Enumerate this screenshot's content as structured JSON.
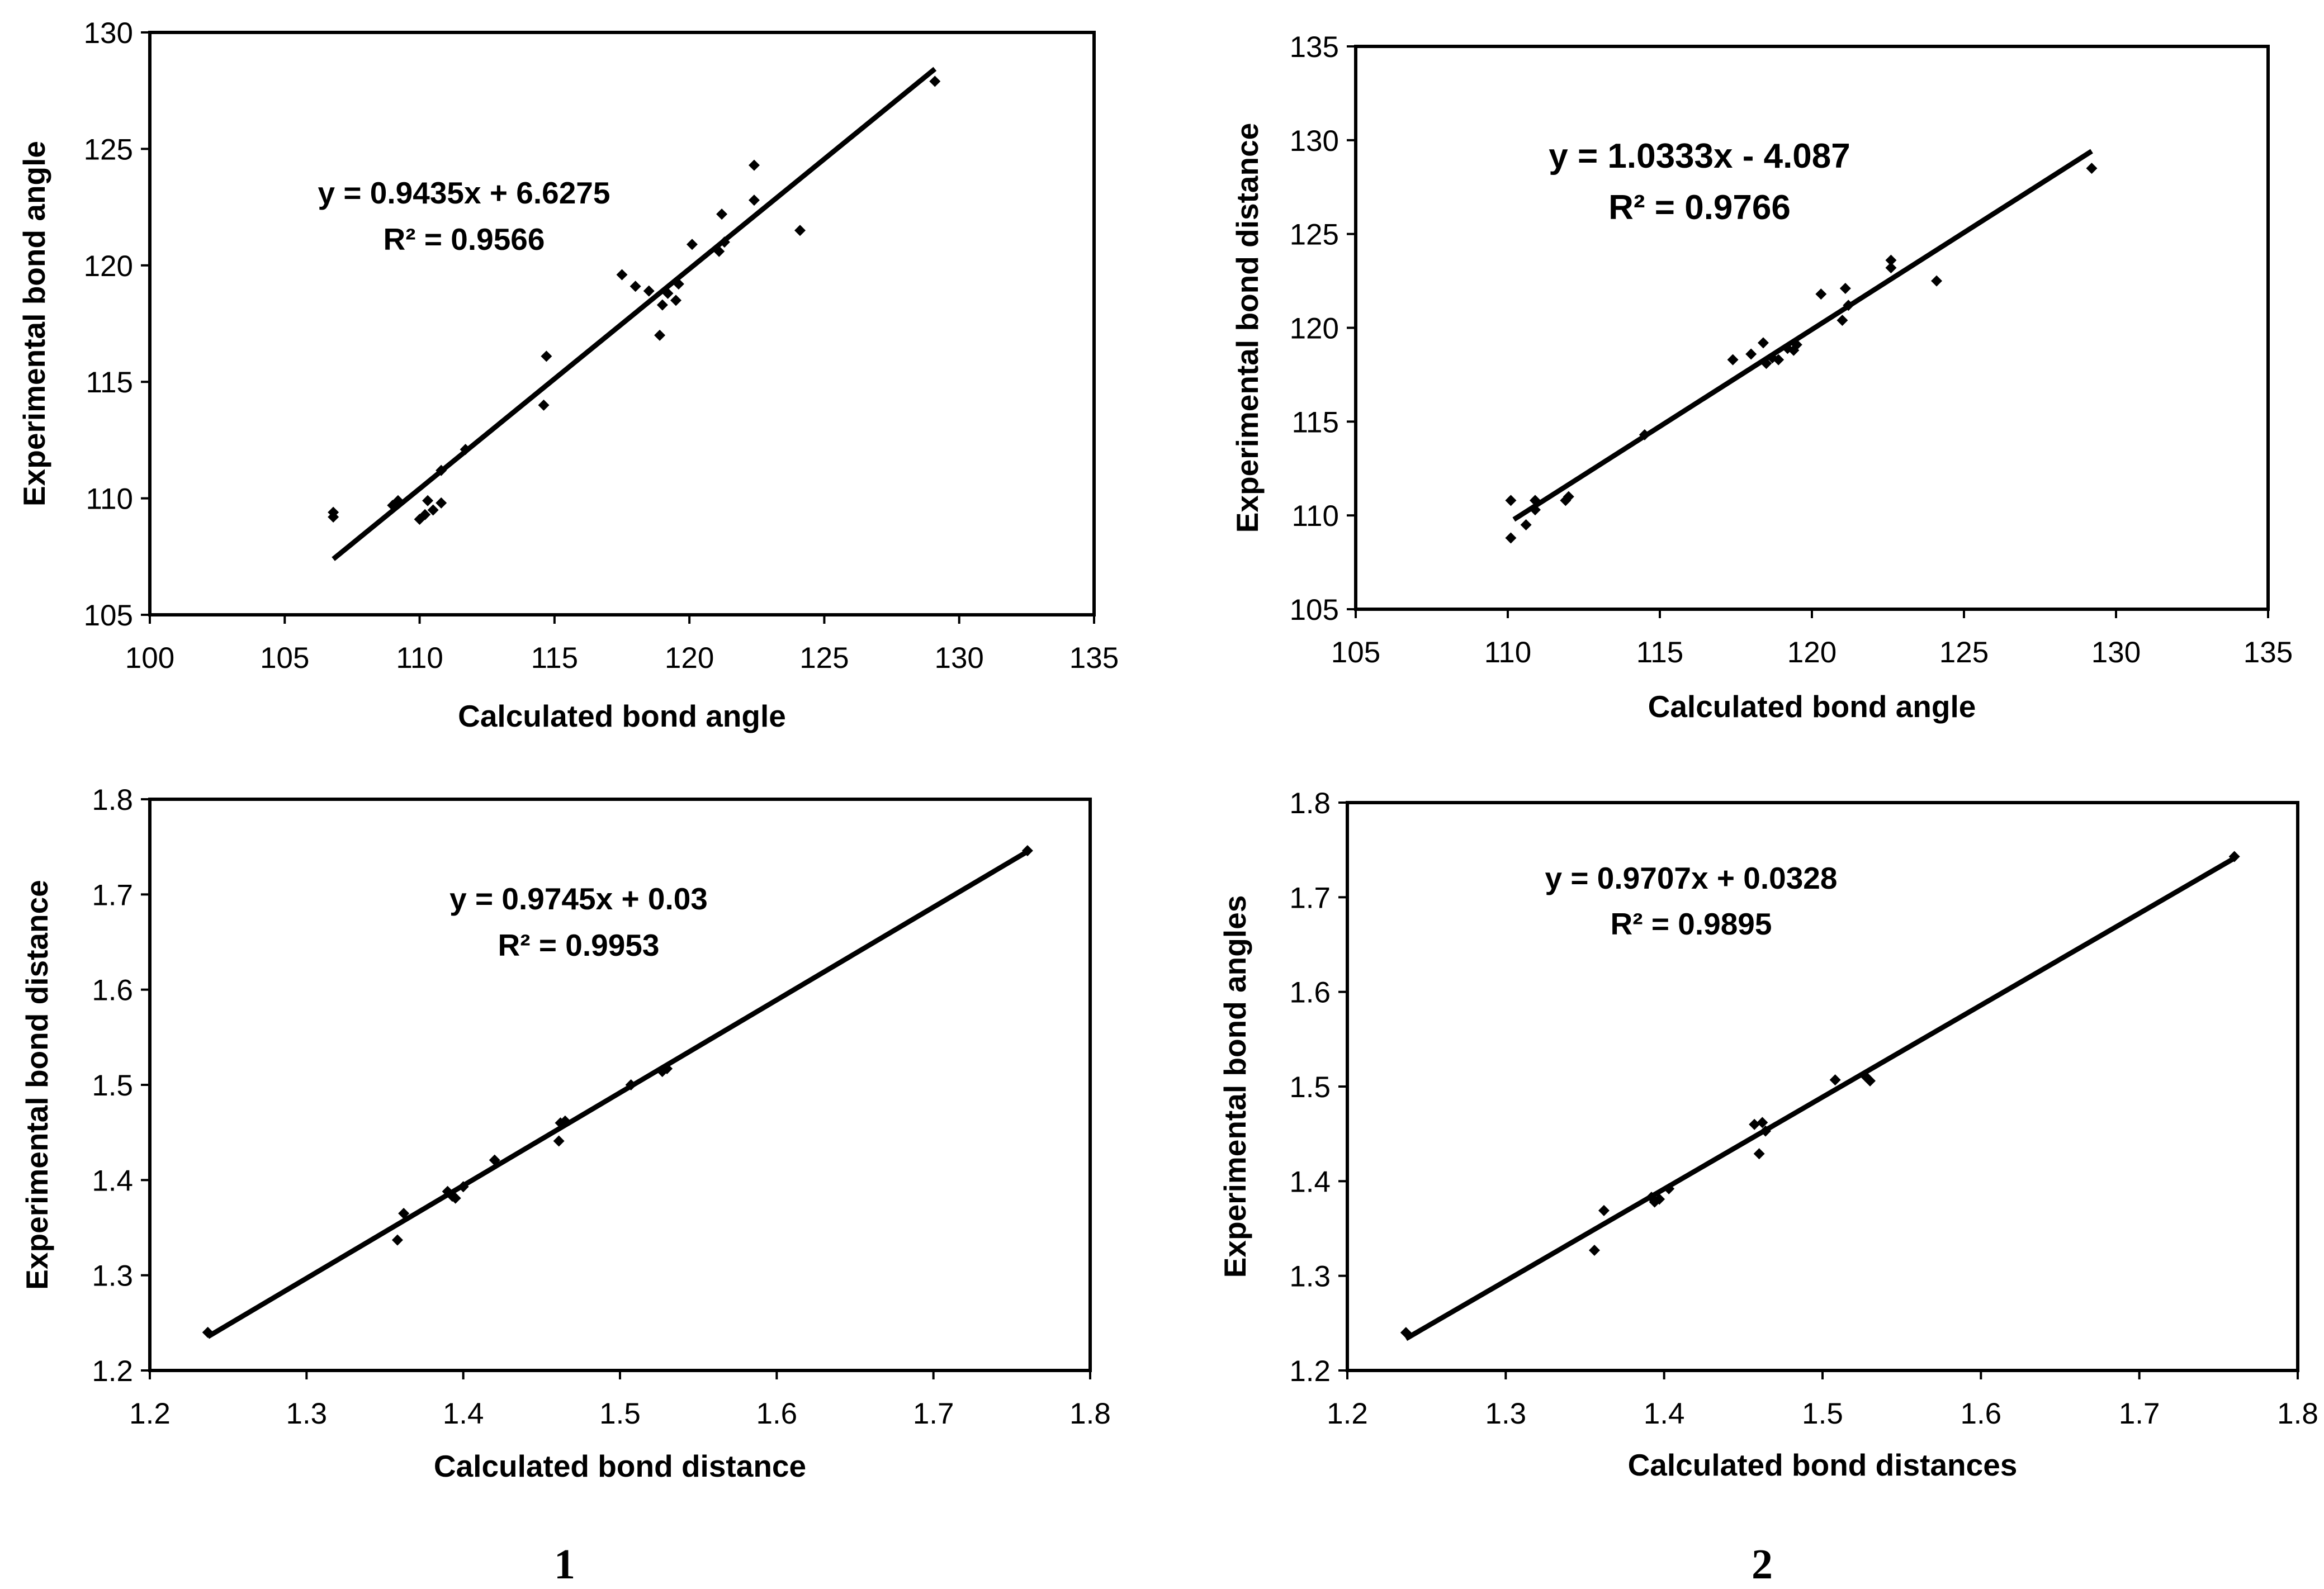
{
  "chart_data": [
    {
      "type": "scatter",
      "id": "top-left",
      "xlabel": "Calculated bond angle",
      "ylabel": "Experimental bond angle",
      "xlim": [
        100,
        135
      ],
      "ylim": [
        105,
        130
      ],
      "xticks": [
        "100",
        "105",
        "110",
        "115",
        "120",
        "125",
        "130",
        "135"
      ],
      "yticks": [
        "105",
        "110",
        "115",
        "120",
        "125",
        "130"
      ],
      "equation": "y = 0.9435x + 6.6275",
      "r2": "R² = 0.9566",
      "trendline": {
        "slope": 0.9435,
        "intercept": 6.6275,
        "x_range": [
          106.8,
          129.1
        ]
      },
      "points": [
        [
          106.8,
          109.4
        ],
        [
          106.8,
          109.2
        ],
        [
          109.0,
          109.7
        ],
        [
          109.2,
          109.9
        ],
        [
          110.0,
          109.1
        ],
        [
          110.2,
          109.3
        ],
        [
          110.3,
          109.9
        ],
        [
          110.5,
          109.5
        ],
        [
          110.8,
          109.8
        ],
        [
          110.8,
          111.2
        ],
        [
          111.7,
          112.1
        ],
        [
          114.6,
          114.0
        ],
        [
          114.7,
          116.1
        ],
        [
          117.5,
          119.6
        ],
        [
          118.0,
          119.1
        ],
        [
          118.5,
          118.9
        ],
        [
          118.9,
          117.0
        ],
        [
          119.0,
          118.3
        ],
        [
          119.2,
          118.8
        ],
        [
          119.5,
          118.5
        ],
        [
          119.6,
          119.2
        ],
        [
          120.1,
          120.9
        ],
        [
          121.1,
          120.6
        ],
        [
          121.2,
          122.2
        ],
        [
          121.3,
          121.0
        ],
        [
          122.4,
          122.8
        ],
        [
          122.4,
          124.3
        ],
        [
          124.1,
          121.5
        ],
        [
          129.1,
          127.9
        ]
      ]
    },
    {
      "type": "scatter",
      "id": "top-right",
      "xlabel": "Calculated bond angle",
      "ylabel": "Experimental bond distance",
      "xlim": [
        105,
        135
      ],
      "ylim": [
        105,
        135
      ],
      "xticks": [
        "105",
        "110",
        "115",
        "120",
        "125",
        "130",
        "135"
      ],
      "yticks": [
        "105",
        "110",
        "115",
        "120",
        "125",
        "130",
        "135"
      ],
      "equation": "y = 1.0333x - 4.087",
      "r2": "R² = 0.9766",
      "trendline": {
        "slope": 1.0333,
        "intercept": -4.087,
        "x_range": [
          110.2,
          129.2
        ]
      },
      "points": [
        [
          110.1,
          110.8
        ],
        [
          110.1,
          108.8
        ],
        [
          110.6,
          109.5
        ],
        [
          110.9,
          110.3
        ],
        [
          110.9,
          110.8
        ],
        [
          111.9,
          110.8
        ],
        [
          112.0,
          111.0
        ],
        [
          114.5,
          114.3
        ],
        [
          117.4,
          118.3
        ],
        [
          118.0,
          118.6
        ],
        [
          118.4,
          119.2
        ],
        [
          118.5,
          118.1
        ],
        [
          118.7,
          118.4
        ],
        [
          118.9,
          118.3
        ],
        [
          119.2,
          118.9
        ],
        [
          119.4,
          118.8
        ],
        [
          119.5,
          119.1
        ],
        [
          120.3,
          121.8
        ],
        [
          121.0,
          120.4
        ],
        [
          121.1,
          122.1
        ],
        [
          121.2,
          121.2
        ],
        [
          122.6,
          123.2
        ],
        [
          122.6,
          123.6
        ],
        [
          124.1,
          122.5
        ],
        [
          129.2,
          128.5
        ]
      ]
    },
    {
      "type": "scatter",
      "id": "bottom-left",
      "xlabel": "Calculated bond distance",
      "ylabel": "Experimental bond distance",
      "xlim": [
        1.2,
        1.8
      ],
      "ylim": [
        1.2,
        1.8
      ],
      "xticks": [
        "1.2",
        "1.3",
        "1.4",
        "1.5",
        "1.6",
        "1.7",
        "1.8"
      ],
      "yticks": [
        "1.2",
        "1.3",
        "1.4",
        "1.5",
        "1.6",
        "1.7",
        "1.8"
      ],
      "equation": "y = 0.9745x + 0.03",
      "r2": "R² = 0.9953",
      "trendline": {
        "slope": 0.9745,
        "intercept": 0.03,
        "x_range": [
          1.237,
          1.76
        ]
      },
      "points": [
        [
          1.237,
          1.24
        ],
        [
          1.358,
          1.337
        ],
        [
          1.362,
          1.365
        ],
        [
          1.39,
          1.388
        ],
        [
          1.393,
          1.383
        ],
        [
          1.395,
          1.381
        ],
        [
          1.4,
          1.393
        ],
        [
          1.42,
          1.421
        ],
        [
          1.461,
          1.441
        ],
        [
          1.462,
          1.46
        ],
        [
          1.465,
          1.462
        ],
        [
          1.507,
          1.5
        ],
        [
          1.527,
          1.514
        ],
        [
          1.53,
          1.517
        ],
        [
          1.76,
          1.746
        ]
      ]
    },
    {
      "type": "scatter",
      "id": "bottom-right",
      "xlabel": "Calculated bond distances",
      "ylabel": "Experimental bond angles",
      "xlim": [
        1.2,
        1.8
      ],
      "ylim": [
        1.2,
        1.8
      ],
      "xticks": [
        "1.2",
        "1.3",
        "1.4",
        "1.5",
        "1.6",
        "1.7",
        "1.8"
      ],
      "yticks": [
        "1.2",
        "1.3",
        "1.4",
        "1.5",
        "1.6",
        "1.7",
        "1.8"
      ],
      "equation": "y = 0.9707x + 0.0328",
      "r2": "R² = 0.9895",
      "trendline": {
        "slope": 0.9707,
        "intercept": 0.0328,
        "x_range": [
          1.237,
          1.76
        ]
      },
      "points": [
        [
          1.237,
          1.24
        ],
        [
          1.356,
          1.327
        ],
        [
          1.362,
          1.369
        ],
        [
          1.392,
          1.383
        ],
        [
          1.394,
          1.378
        ],
        [
          1.397,
          1.381
        ],
        [
          1.403,
          1.392
        ],
        [
          1.457,
          1.46
        ],
        [
          1.46,
          1.429
        ],
        [
          1.462,
          1.462
        ],
        [
          1.464,
          1.453
        ],
        [
          1.508,
          1.507
        ],
        [
          1.527,
          1.511
        ],
        [
          1.53,
          1.506
        ],
        [
          1.76,
          1.743
        ]
      ]
    }
  ],
  "labels": {
    "left": "1",
    "right": "2"
  }
}
